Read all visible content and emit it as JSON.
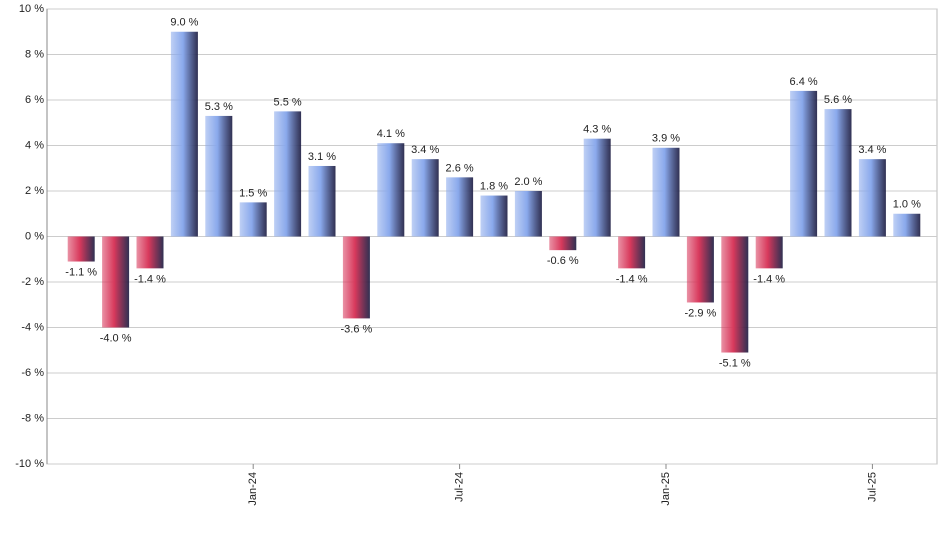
{
  "chart_data": {
    "type": "bar",
    "categories": [
      null,
      null,
      null,
      null,
      null,
      "Jan-24",
      null,
      null,
      null,
      null,
      null,
      "Jul-24",
      null,
      null,
      null,
      null,
      null,
      "Jan-25",
      null,
      null,
      null,
      null,
      null,
      "Jul-25",
      null
    ],
    "values": [
      -1.1,
      -4.0,
      -1.4,
      9.0,
      5.3,
      1.5,
      5.5,
      3.1,
      -3.6,
      4.1,
      3.4,
      2.6,
      1.8,
      2.0,
      -0.6,
      4.3,
      -1.4,
      3.9,
      -2.9,
      -5.1,
      -1.4,
      6.4,
      5.6,
      3.4,
      1.0
    ],
    "value_labels": [
      "-1.1 %",
      "-4.0 %",
      "-1.4 %",
      "9.0 %",
      "5.3 %",
      "1.5 %",
      "5.5 %",
      "3.1 %",
      "-3.6 %",
      "4.1 %",
      "3.4 %",
      "2.6 %",
      "1.8 %",
      "2.0 %",
      "-0.6 %",
      "4.3 %",
      "-1.4 %",
      "3.9 %",
      "-2.9 %",
      "-5.1 %",
      "-1.4 %",
      "6.4 %",
      "5.6 %",
      "3.4 %",
      "1.0 %"
    ],
    "colors": {
      "positive": "#8aa9ec",
      "negative": "#d8395c"
    },
    "ylim": [
      -10,
      10
    ],
    "yticks": [
      {
        "value": -10,
        "label": "-10 %"
      },
      {
        "value": -8,
        "label": "-8 %"
      },
      {
        "value": -6,
        "label": "-6 %"
      },
      {
        "value": -4,
        "label": "-4 %"
      },
      {
        "value": -2,
        "label": "-2 %"
      },
      {
        "value": 0,
        "label": "0 %"
      },
      {
        "value": 2,
        "label": "2 %"
      },
      {
        "value": 4,
        "label": "4 %"
      },
      {
        "value": 6,
        "label": "6 %"
      },
      {
        "value": 8,
        "label": "8 %"
      },
      {
        "value": 10,
        "label": "10 %"
      }
    ],
    "grid": true
  }
}
